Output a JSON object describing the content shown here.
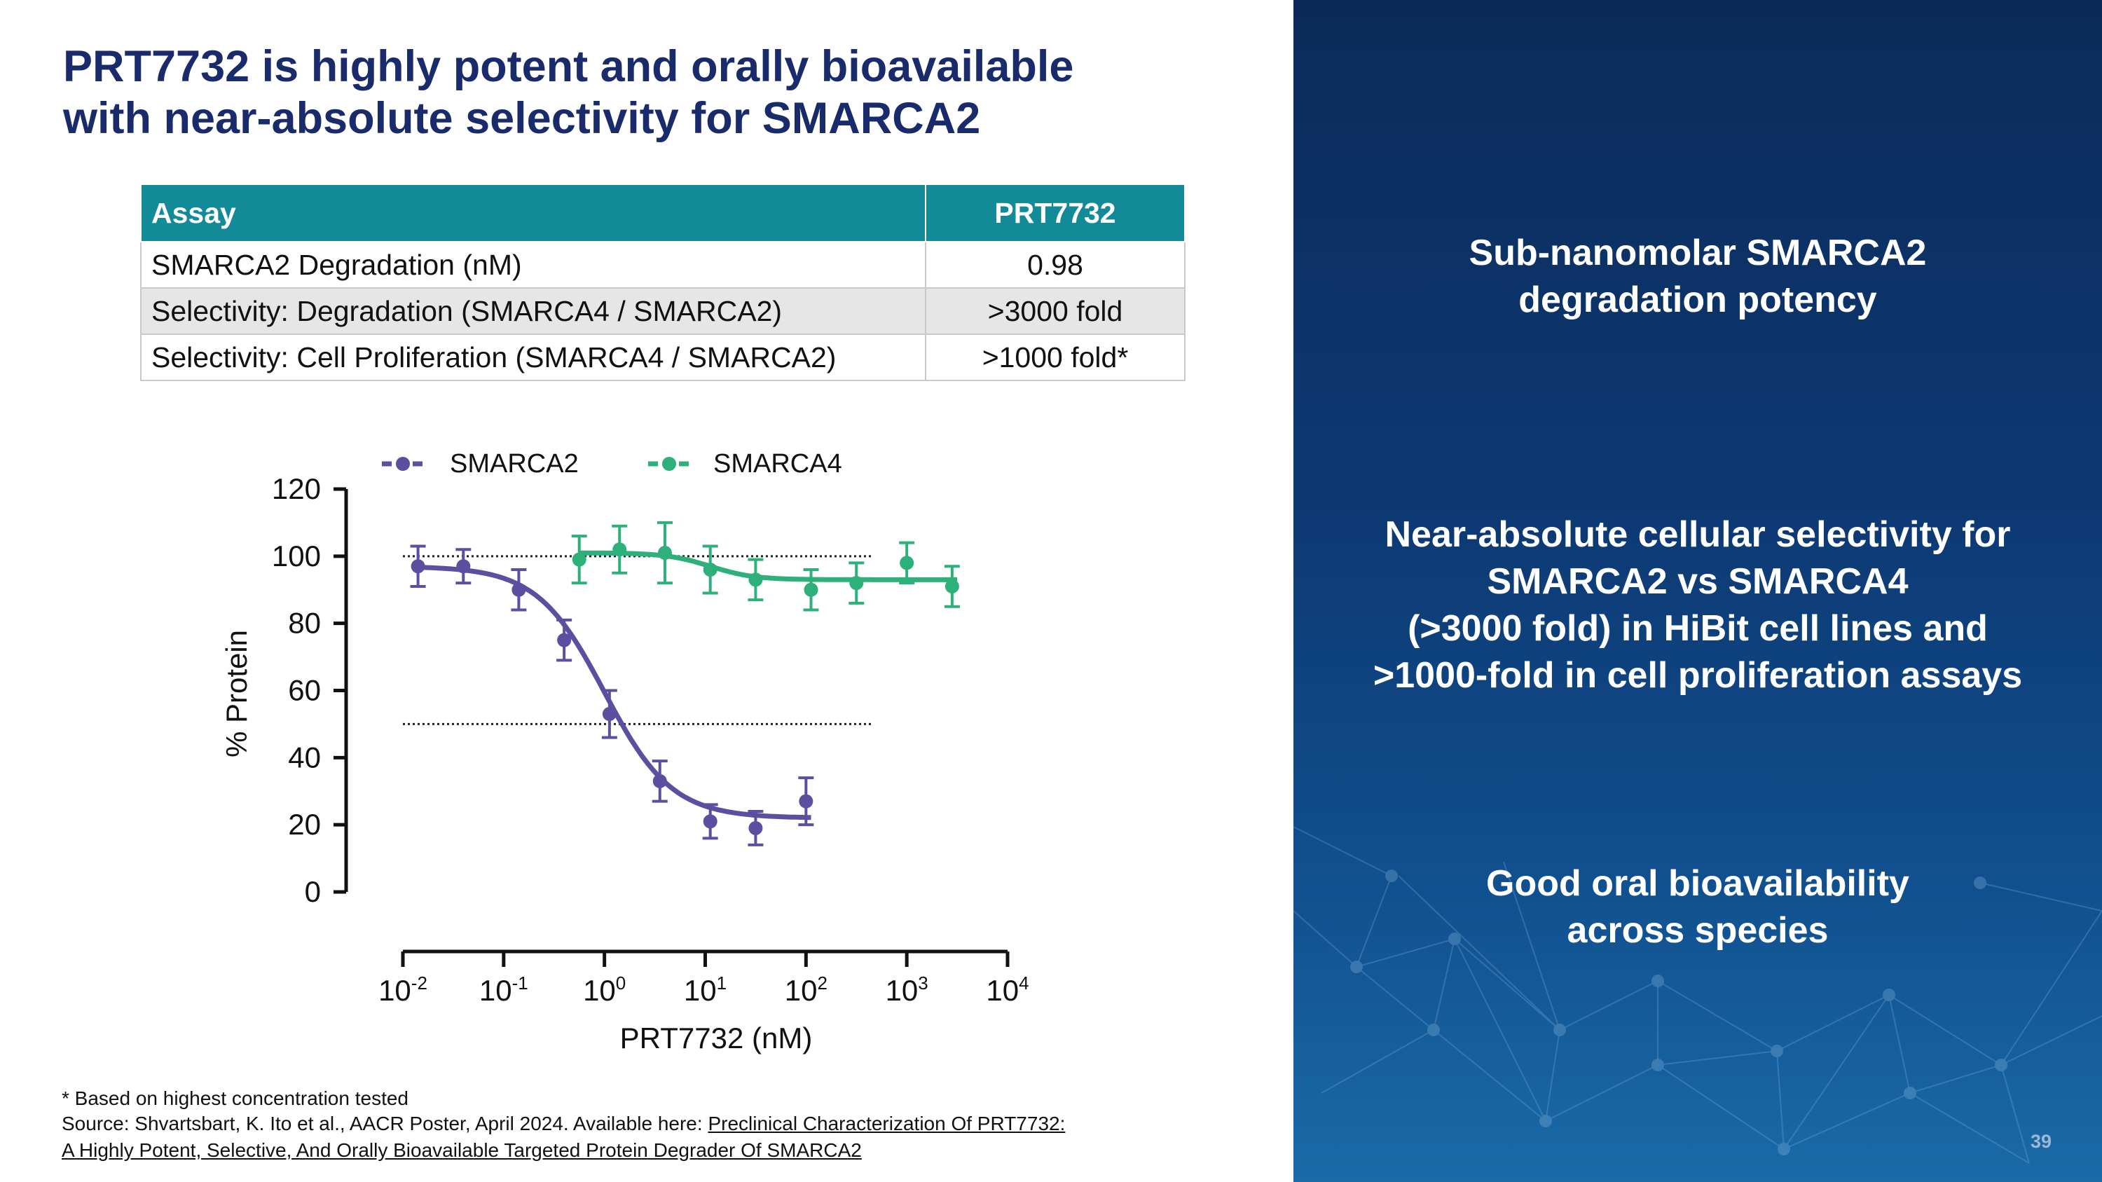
{
  "title": {
    "line1": "PRT7732 is highly potent and orally bioavailable",
    "line2": "with near-absolute selectivity for SMARCA2"
  },
  "table": {
    "headers": [
      "Assay",
      "PRT7732"
    ],
    "rows": [
      {
        "assay": "SMARCA2 Degradation (nM)",
        "value": "0.98"
      },
      {
        "assay": "Selectivity: Degradation (SMARCA4 / SMARCA2)",
        "value": ">3000 fold"
      },
      {
        "assay": "Selectivity: Cell Proliferation (SMARCA4 / SMARCA2)",
        "value": ">1000 fold*"
      }
    ]
  },
  "chart_data": {
    "type": "scatter",
    "ylabel": "% Protein",
    "xlabel": "PRT7732 (nM)",
    "xscale": "log",
    "xlim_log10": [
      -2,
      4
    ],
    "ylim": [
      0,
      120
    ],
    "yticks": [
      "0",
      "20",
      "40",
      "60",
      "80",
      "100",
      "120"
    ],
    "xticks": [
      {
        "base": "10",
        "exp": "-2"
      },
      {
        "base": "10",
        "exp": "-1"
      },
      {
        "base": "10",
        "exp": "0"
      },
      {
        "base": "10",
        "exp": "1"
      },
      {
        "base": "10",
        "exp": "2"
      },
      {
        "base": "10",
        "exp": "3"
      },
      {
        "base": "10",
        "exp": "4"
      }
    ],
    "reference_lines_y": [
      100,
      50
    ],
    "legend": "top",
    "series": [
      {
        "name": "SMARCA2",
        "color": "#5b4fa0",
        "x_log10": [
          -1.85,
          -1.4,
          -0.85,
          -0.4,
          0.05,
          0.55,
          1.05,
          1.5,
          2.0
        ],
        "y": [
          97,
          97,
          90,
          75,
          53,
          33,
          21,
          19,
          27
        ],
        "err": [
          6,
          5,
          6,
          6,
          7,
          6,
          5,
          5,
          7
        ],
        "fit": {
          "top": 97,
          "bottom": 22,
          "log_ic50": 0.0,
          "hill": 1.3,
          "x_range_log10": [
            -1.85,
            2.05
          ]
        }
      },
      {
        "name": "SMARCA4",
        "color": "#2eb07a",
        "x_log10": [
          -0.25,
          0.15,
          0.6,
          1.05,
          1.5,
          2.05,
          2.5,
          3.0,
          3.45
        ],
        "y": [
          99,
          102,
          101,
          96,
          93,
          90,
          92,
          98,
          91
        ],
        "err": [
          7,
          7,
          9,
          7,
          6,
          6,
          6,
          6,
          6
        ],
        "fit": {
          "top": 101,
          "bottom": 93,
          "log_ic50": 1.05,
          "hill": 2.0,
          "x_range_log10": [
            -0.25,
            3.5
          ]
        }
      }
    ]
  },
  "footnotes": {
    "note": "* Based on highest concentration tested",
    "source_prefix": "Source:  Shvartsbart, K. Ito et al., AACR Poster, April 2024. Available here: ",
    "source_link_1": "Preclinical Characterization Of PRT7732:",
    "source_link_2": "A Highly Potent, Selective, And Orally Bioavailable Targeted Protein Degrader Of SMARCA2"
  },
  "panel": {
    "point1": [
      "Sub-nanomolar SMARCA2",
      "degradation potency"
    ],
    "point2": [
      "Near-absolute cellular selectivity for",
      "SMARCA2 vs SMARCA4",
      "(>3000 fold) in HiBit cell lines and",
      ">1000-fold in cell proliferation assays"
    ],
    "point3": [
      "Good oral bioavailability",
      "across species"
    ],
    "page_number": "39"
  }
}
